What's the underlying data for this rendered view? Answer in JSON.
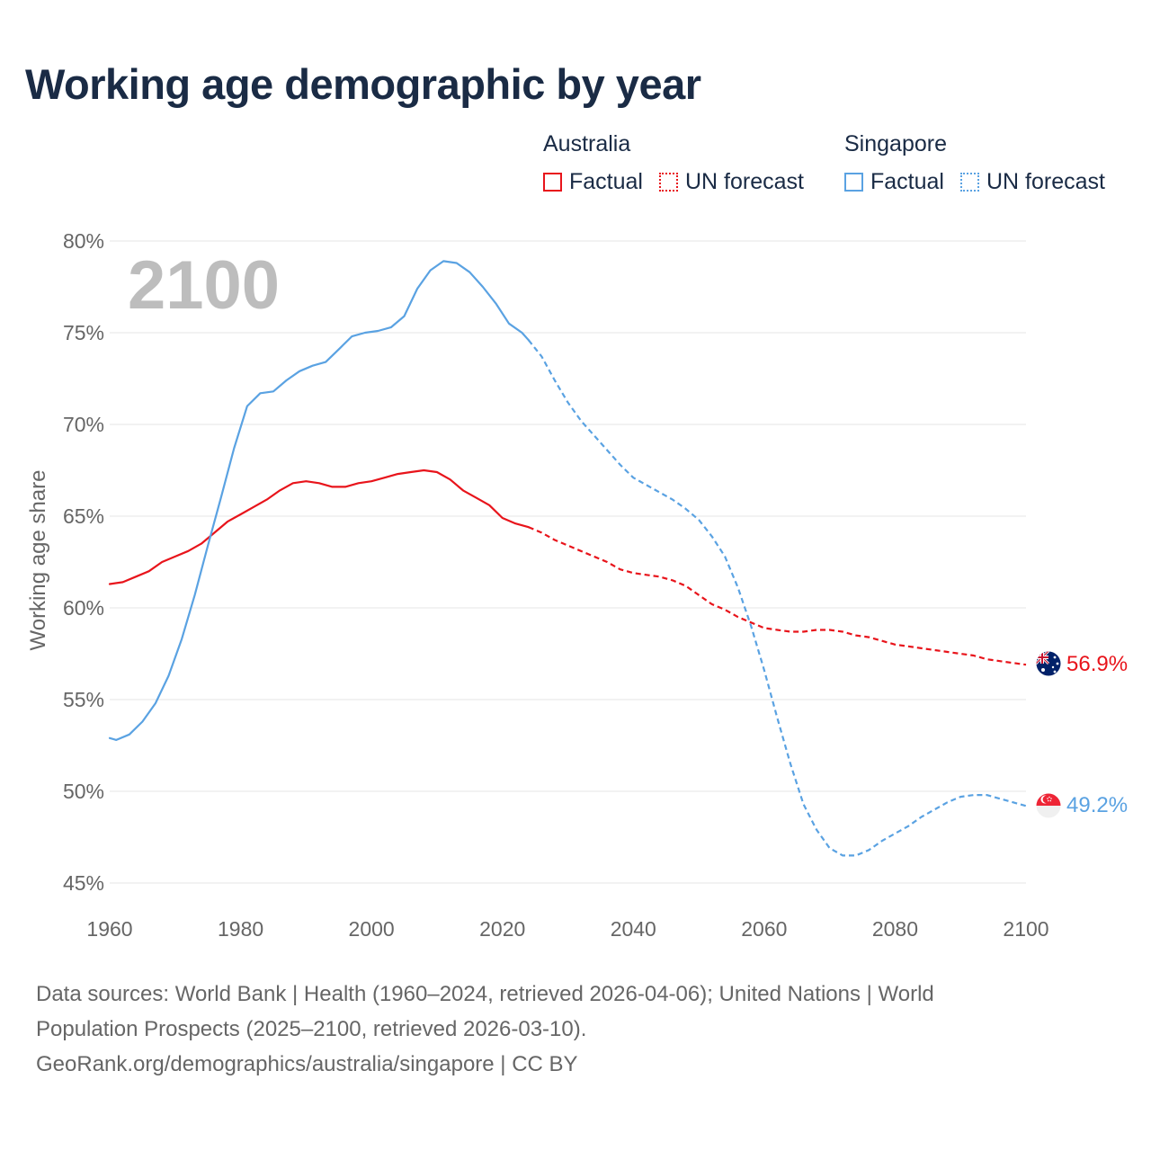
{
  "title": "Working age demographic by year",
  "legend": {
    "australia": {
      "title": "Australia",
      "factual": "Factual",
      "forecast": "UN forecast"
    },
    "singapore": {
      "title": "Singapore",
      "factual": "Factual",
      "forecast": "UN forecast"
    }
  },
  "colors": {
    "australia": "#e8141b",
    "singapore": "#5aa2e2",
    "grid": "#e6e6e6",
    "axis_text": "#666666",
    "year_watermark": "#bdbdbd"
  },
  "icons": {
    "australia": "australia-flag-icon",
    "singapore": "singapore-flag-icon"
  },
  "source": {
    "line1": "Data sources: World Bank | Health (1960–2024, retrieved 2026-04-06); United Nations | World",
    "line2": "Population Prospects (2025–2100, retrieved 2026-03-10).",
    "line3": "GeoRank.org/demographics/australia/singapore | CC BY"
  },
  "chart_data": {
    "type": "line",
    "title": "Working age demographic by year",
    "year_display": "2100",
    "xlabel": "",
    "ylabel": "Working age share",
    "xlim": [
      1960,
      2100
    ],
    "ylim": [
      45,
      80
    ],
    "x_ticks": [
      1960,
      1980,
      2000,
      2020,
      2040,
      2060,
      2080,
      2100
    ],
    "y_ticks": [
      45,
      50,
      55,
      60,
      65,
      70,
      75,
      80
    ],
    "y_tick_labels": [
      "45%",
      "50%",
      "55%",
      "60%",
      "65%",
      "70%",
      "75%",
      "80%"
    ],
    "grid": true,
    "factual_until": 2024,
    "series": [
      {
        "name": "Australia",
        "color": "#e8141b",
        "end_label": "56.9%",
        "points": [
          [
            1960,
            61.3
          ],
          [
            1962,
            61.4
          ],
          [
            1964,
            61.7
          ],
          [
            1966,
            62.0
          ],
          [
            1968,
            62.5
          ],
          [
            1970,
            62.8
          ],
          [
            1972,
            63.1
          ],
          [
            1974,
            63.5
          ],
          [
            1976,
            64.1
          ],
          [
            1978,
            64.7
          ],
          [
            1980,
            65.1
          ],
          [
            1982,
            65.5
          ],
          [
            1984,
            65.9
          ],
          [
            1986,
            66.4
          ],
          [
            1988,
            66.8
          ],
          [
            1990,
            66.9
          ],
          [
            1992,
            66.8
          ],
          [
            1994,
            66.6
          ],
          [
            1996,
            66.6
          ],
          [
            1998,
            66.8
          ],
          [
            2000,
            66.9
          ],
          [
            2002,
            67.1
          ],
          [
            2004,
            67.3
          ],
          [
            2006,
            67.4
          ],
          [
            2008,
            67.5
          ],
          [
            2010,
            67.4
          ],
          [
            2012,
            67.0
          ],
          [
            2014,
            66.4
          ],
          [
            2016,
            66.0
          ],
          [
            2018,
            65.6
          ],
          [
            2020,
            64.9
          ],
          [
            2022,
            64.6
          ],
          [
            2024,
            64.4
          ],
          [
            2026,
            64.1
          ],
          [
            2028,
            63.7
          ],
          [
            2030,
            63.4
          ],
          [
            2032,
            63.1
          ],
          [
            2034,
            62.8
          ],
          [
            2036,
            62.5
          ],
          [
            2038,
            62.1
          ],
          [
            2040,
            61.9
          ],
          [
            2042,
            61.8
          ],
          [
            2044,
            61.7
          ],
          [
            2046,
            61.5
          ],
          [
            2048,
            61.2
          ],
          [
            2050,
            60.7
          ],
          [
            2052,
            60.2
          ],
          [
            2054,
            59.9
          ],
          [
            2056,
            59.5
          ],
          [
            2058,
            59.2
          ],
          [
            2060,
            58.9
          ],
          [
            2062,
            58.8
          ],
          [
            2064,
            58.7
          ],
          [
            2066,
            58.7
          ],
          [
            2068,
            58.8
          ],
          [
            2070,
            58.8
          ],
          [
            2072,
            58.7
          ],
          [
            2074,
            58.5
          ],
          [
            2076,
            58.4
          ],
          [
            2078,
            58.2
          ],
          [
            2080,
            58.0
          ],
          [
            2082,
            57.9
          ],
          [
            2084,
            57.8
          ],
          [
            2086,
            57.7
          ],
          [
            2088,
            57.6
          ],
          [
            2090,
            57.5
          ],
          [
            2092,
            57.4
          ],
          [
            2094,
            57.2
          ],
          [
            2096,
            57.1
          ],
          [
            2098,
            57.0
          ],
          [
            2100,
            56.9
          ]
        ]
      },
      {
        "name": "Singapore",
        "color": "#5aa2e2",
        "end_label": "49.2%",
        "points": [
          [
            1960,
            52.9
          ],
          [
            1961,
            52.8
          ],
          [
            1963,
            53.1
          ],
          [
            1965,
            53.8
          ],
          [
            1967,
            54.8
          ],
          [
            1969,
            56.3
          ],
          [
            1971,
            58.3
          ],
          [
            1973,
            60.7
          ],
          [
            1975,
            63.4
          ],
          [
            1977,
            66.0
          ],
          [
            1979,
            68.7
          ],
          [
            1981,
            71.0
          ],
          [
            1983,
            71.7
          ],
          [
            1985,
            71.8
          ],
          [
            1987,
            72.4
          ],
          [
            1989,
            72.9
          ],
          [
            1991,
            73.2
          ],
          [
            1993,
            73.4
          ],
          [
            1995,
            74.1
          ],
          [
            1997,
            74.8
          ],
          [
            1999,
            75.0
          ],
          [
            2001,
            75.1
          ],
          [
            2003,
            75.3
          ],
          [
            2005,
            75.9
          ],
          [
            2007,
            77.4
          ],
          [
            2009,
            78.4
          ],
          [
            2011,
            78.9
          ],
          [
            2013,
            78.8
          ],
          [
            2015,
            78.3
          ],
          [
            2017,
            77.5
          ],
          [
            2019,
            76.6
          ],
          [
            2021,
            75.5
          ],
          [
            2023,
            75.0
          ],
          [
            2024,
            74.6
          ],
          [
            2026,
            73.7
          ],
          [
            2028,
            72.4
          ],
          [
            2030,
            71.2
          ],
          [
            2032,
            70.2
          ],
          [
            2034,
            69.4
          ],
          [
            2036,
            68.6
          ],
          [
            2038,
            67.8
          ],
          [
            2040,
            67.1
          ],
          [
            2042,
            66.7
          ],
          [
            2044,
            66.3
          ],
          [
            2046,
            65.9
          ],
          [
            2048,
            65.4
          ],
          [
            2050,
            64.8
          ],
          [
            2052,
            63.9
          ],
          [
            2054,
            62.8
          ],
          [
            2056,
            61.1
          ],
          [
            2058,
            59.0
          ],
          [
            2060,
            56.6
          ],
          [
            2062,
            54.0
          ],
          [
            2064,
            51.5
          ],
          [
            2066,
            49.3
          ],
          [
            2068,
            47.9
          ],
          [
            2070,
            46.9
          ],
          [
            2072,
            46.5
          ],
          [
            2074,
            46.5
          ],
          [
            2076,
            46.8
          ],
          [
            2078,
            47.3
          ],
          [
            2080,
            47.7
          ],
          [
            2082,
            48.1
          ],
          [
            2084,
            48.6
          ],
          [
            2086,
            49.0
          ],
          [
            2088,
            49.4
          ],
          [
            2090,
            49.7
          ],
          [
            2092,
            49.8
          ],
          [
            2094,
            49.8
          ],
          [
            2096,
            49.6
          ],
          [
            2098,
            49.4
          ],
          [
            2100,
            49.2
          ]
        ]
      }
    ]
  }
}
